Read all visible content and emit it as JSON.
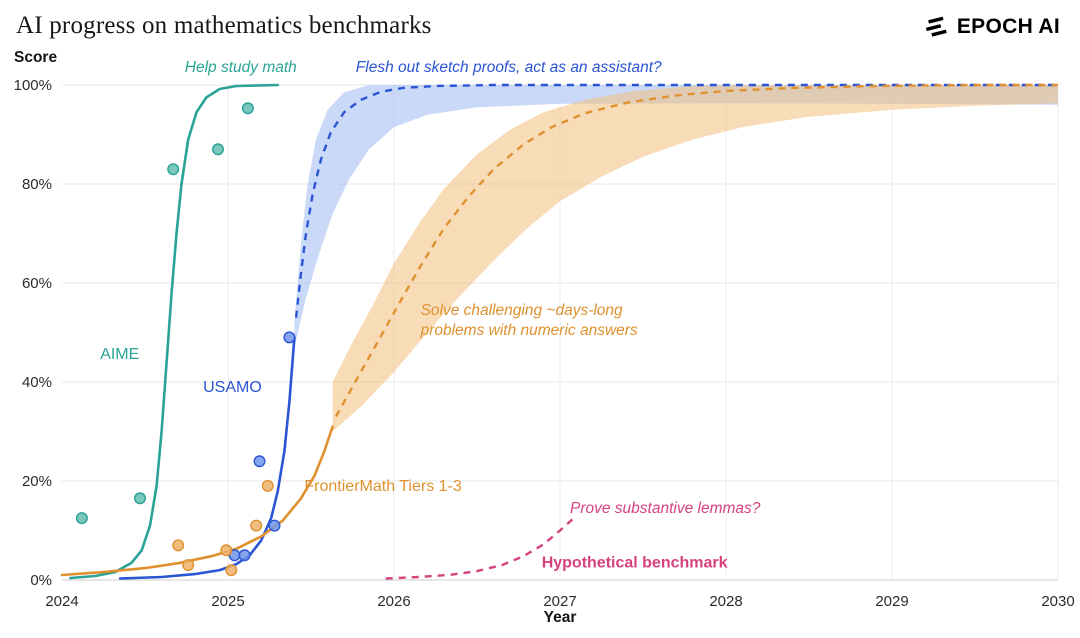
{
  "header": {
    "title": "AI progress on mathematics benchmarks",
    "logo_text": "EPOCH AI"
  },
  "chart_data": {
    "type": "line",
    "title": "AI progress on mathematics benchmarks",
    "xlabel": "Year",
    "ylabel": "Score",
    "xlim": [
      2024,
      2030
    ],
    "ylim": [
      0,
      100
    ],
    "x_ticks": [
      2024,
      2025,
      2026,
      2027,
      2028,
      2029,
      2030
    ],
    "y_ticks": [
      0,
      20,
      40,
      60,
      80,
      100
    ],
    "y_tick_suffix": "%",
    "grid": true,
    "legend_position": "inline-labels",
    "series": [
      {
        "name": "AIME",
        "color": "#2aa397",
        "dot_fill": "#62bdb2",
        "label": {
          "text": "AIME",
          "x": 2024.23,
          "y": 44.6
        },
        "line": {
          "style": "solid",
          "points": [
            [
              2024.05,
              0.4
            ],
            [
              2024.2,
              0.8
            ],
            [
              2024.32,
              1.6
            ],
            [
              2024.42,
              3.5
            ],
            [
              2024.48,
              6
            ],
            [
              2024.53,
              11
            ],
            [
              2024.57,
              19
            ],
            [
              2024.6,
              30
            ],
            [
              2024.63,
              44
            ],
            [
              2024.66,
              58
            ],
            [
              2024.69,
              70
            ],
            [
              2024.72,
              80
            ],
            [
              2024.76,
              89
            ],
            [
              2024.81,
              94.5
            ],
            [
              2024.87,
              97.5
            ],
            [
              2024.95,
              99.2
            ],
            [
              2025.05,
              99.8
            ],
            [
              2025.3,
              100
            ]
          ]
        },
        "scatter": [
          [
            2024.12,
            12.5
          ],
          [
            2024.47,
            16.5
          ],
          [
            2024.67,
            83
          ],
          [
            2024.94,
            87
          ],
          [
            2025.12,
            95.3
          ]
        ]
      },
      {
        "name": "USAMO",
        "color": "#2b55d4",
        "dot_fill": "#6f94ea",
        "label": {
          "text": "USAMO",
          "x": 2024.85,
          "y": 38
        },
        "line": {
          "style": "solid",
          "points": [
            [
              2024.35,
              0.3
            ],
            [
              2024.6,
              0.6
            ],
            [
              2024.8,
              1.2
            ],
            [
              2024.95,
              2
            ],
            [
              2025.05,
              3.2
            ],
            [
              2025.13,
              5
            ],
            [
              2025.2,
              8
            ],
            [
              2025.26,
              12.5
            ],
            [
              2025.3,
              18
            ],
            [
              2025.34,
              26
            ],
            [
              2025.37,
              36
            ],
            [
              2025.4,
              49
            ]
          ]
        },
        "projection": {
          "style": "dashed",
          "points": [
            [
              2025.41,
              53
            ],
            [
              2025.44,
              62
            ],
            [
              2025.47,
              70
            ],
            [
              2025.51,
              78
            ],
            [
              2025.56,
              85
            ],
            [
              2025.62,
              90.5
            ],
            [
              2025.7,
              94.5
            ],
            [
              2025.8,
              97
            ],
            [
              2025.92,
              98.6
            ],
            [
              2026.05,
              99.4
            ],
            [
              2026.25,
              99.8
            ],
            [
              2026.6,
              100
            ],
            [
              2030,
              100
            ]
          ]
        },
        "band": {
          "color": "#9db9f0",
          "opacity": 0.55,
          "upper": [
            [
              2025.4,
              52
            ],
            [
              2025.44,
              68
            ],
            [
              2025.48,
              80
            ],
            [
              2025.53,
              89
            ],
            [
              2025.6,
              95
            ],
            [
              2025.7,
              98.5
            ],
            [
              2025.85,
              100
            ],
            [
              2030,
              100
            ]
          ],
          "lower": [
            [
              2025.4,
              47
            ],
            [
              2025.47,
              57
            ],
            [
              2025.55,
              66
            ],
            [
              2025.63,
              74
            ],
            [
              2025.73,
              81
            ],
            [
              2025.85,
              87
            ],
            [
              2026.0,
              91.5
            ],
            [
              2026.2,
              94
            ],
            [
              2026.5,
              95.5
            ],
            [
              2027,
              96.2
            ],
            [
              2028,
              96.3
            ],
            [
              2029,
              96.2
            ],
            [
              2030,
              96
            ]
          ]
        },
        "scatter": [
          [
            2025.04,
            5
          ],
          [
            2025.1,
            5
          ],
          [
            2025.19,
            24
          ],
          [
            2025.28,
            11
          ],
          [
            2025.37,
            49
          ]
        ]
      },
      {
        "name": "FrontierMath Tiers 1-3",
        "color": "#e0912f",
        "dot_fill": "#edb269",
        "label": {
          "text": "FrontierMath Tiers 1-3",
          "x": 2025.46,
          "y": 18
        },
        "line": {
          "style": "solid",
          "points": [
            [
              2024.0,
              1
            ],
            [
              2024.25,
              1.6
            ],
            [
              2024.5,
              2.4
            ],
            [
              2024.7,
              3.4
            ],
            [
              2024.9,
              4.8
            ],
            [
              2025.05,
              6.3
            ],
            [
              2025.2,
              8.8
            ],
            [
              2025.33,
              12
            ],
            [
              2025.44,
              16.5
            ],
            [
              2025.52,
              21
            ],
            [
              2025.58,
              26
            ],
            [
              2025.63,
              31
            ]
          ]
        },
        "projection": {
          "style": "dashed",
          "points": [
            [
              2025.65,
              33
            ],
            [
              2025.75,
              39
            ],
            [
              2025.85,
              45
            ],
            [
              2025.95,
              51
            ],
            [
              2026.05,
              57
            ],
            [
              2026.17,
              64
            ],
            [
              2026.3,
              71
            ],
            [
              2026.45,
              77.5
            ],
            [
              2026.6,
              83
            ],
            [
              2026.78,
              88
            ],
            [
              2026.95,
              91.5
            ],
            [
              2027.15,
              94.3
            ],
            [
              2027.4,
              96.4
            ],
            [
              2027.7,
              97.9
            ],
            [
              2028.0,
              98.8
            ],
            [
              2028.4,
              99.4
            ],
            [
              2028.9,
              99.8
            ],
            [
              2029.5,
              100
            ],
            [
              2030,
              100
            ]
          ]
        },
        "band": {
          "color": "#f2bf7d",
          "opacity": 0.55,
          "upper": [
            [
              2025.63,
              40
            ],
            [
              2025.75,
              48
            ],
            [
              2025.88,
              56
            ],
            [
              2026.0,
              64
            ],
            [
              2026.15,
              72
            ],
            [
              2026.3,
              79
            ],
            [
              2026.5,
              86
            ],
            [
              2026.7,
              91
            ],
            [
              2026.9,
              94.5
            ],
            [
              2027.15,
              97
            ],
            [
              2027.45,
              98.8
            ],
            [
              2027.8,
              99.8
            ],
            [
              2028.1,
              100
            ],
            [
              2030,
              100
            ]
          ],
          "lower": [
            [
              2025.63,
              30
            ],
            [
              2025.8,
              35
            ],
            [
              2026.0,
              42
            ],
            [
              2026.2,
              50
            ],
            [
              2026.4,
              57.5
            ],
            [
              2026.6,
              64.5
            ],
            [
              2026.8,
              71
            ],
            [
              2027.0,
              76.5
            ],
            [
              2027.25,
              81.5
            ],
            [
              2027.5,
              85.5
            ],
            [
              2027.8,
              89
            ],
            [
              2028.1,
              91.5
            ],
            [
              2028.5,
              93.6
            ],
            [
              2029,
              95
            ],
            [
              2029.5,
              95.8
            ],
            [
              2030,
              96.3
            ]
          ]
        },
        "scatter": [
          [
            2024.7,
            7
          ],
          [
            2024.76,
            3
          ],
          [
            2024.99,
            6
          ],
          [
            2025.02,
            2
          ],
          [
            2025.17,
            11
          ],
          [
            2025.24,
            19
          ]
        ]
      },
      {
        "name": "Hypothetical benchmark",
        "color": "#d6417f",
        "label": {
          "text": "Hypothetical benchmark",
          "x": 2026.89,
          "y": 2.5,
          "bold": true
        },
        "projection": {
          "style": "dashed",
          "points": [
            [
              2025.95,
              0.3
            ],
            [
              2026.15,
              0.6
            ],
            [
              2026.35,
              1.1
            ],
            [
              2026.5,
              1.8
            ],
            [
              2026.65,
              3
            ],
            [
              2026.78,
              4.8
            ],
            [
              2026.9,
              7.2
            ],
            [
              2027.0,
              10
            ],
            [
              2027.1,
              13
            ]
          ]
        }
      }
    ],
    "annotations": [
      {
        "name": "help-study-math",
        "lines": [
          "Help study math"
        ],
        "x": 2024.74,
        "y": 102.6,
        "color": "#2aa397"
      },
      {
        "name": "flesh-out-sketch-proofs",
        "lines": [
          "Flesh out sketch proofs, act as an assistant?"
        ],
        "x": 2025.77,
        "y": 102.6,
        "color": "#2b55d4"
      },
      {
        "name": "solve-challenging-problems",
        "lines": [
          "Solve challenging ~days-long",
          "problems with numeric answers"
        ],
        "x": 2026.16,
        "y": 53.5,
        "color": "#e0912f"
      },
      {
        "name": "prove-substantive-lemmas",
        "lines": [
          "Prove substantive lemmas?"
        ],
        "x": 2027.06,
        "y": 13.5,
        "color": "#d6417f"
      }
    ]
  }
}
